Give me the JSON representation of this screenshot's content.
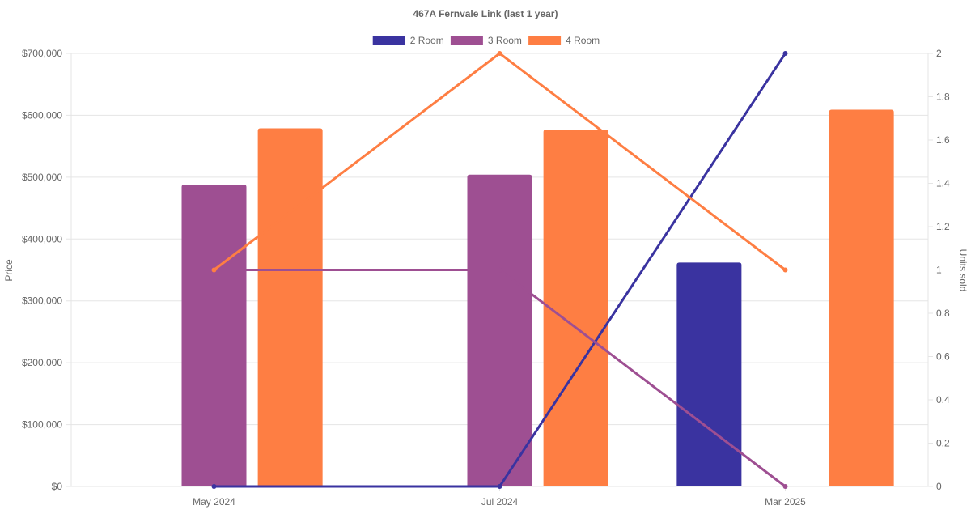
{
  "chart_data": {
    "type": "bar+line",
    "title": "467A Fernvale Link (last 1 year)",
    "categories": [
      "May 2024",
      "Jul 2024",
      "Mar 2025"
    ],
    "y_left_label": "Price",
    "y_right_label": "Units sold",
    "y_left_range": [
      0,
      700000
    ],
    "y_left_ticks": [
      "$0",
      "$100,000",
      "$200,000",
      "$300,000",
      "$400,000",
      "$500,000",
      "$600,000",
      "$700,000"
    ],
    "y_right_range": [
      0,
      2
    ],
    "y_right_ticks": [
      "0",
      "0.2",
      "0.4",
      "0.6",
      "0.8",
      "1",
      "1.2",
      "1.4",
      "1.6",
      "1.8",
      "2"
    ],
    "grid": true,
    "legend_position": "top",
    "series": [
      {
        "name": "2 Room",
        "color": "#3a33a0",
        "price": [
          null,
          null,
          362000
        ],
        "units_sold": [
          0,
          0,
          2
        ]
      },
      {
        "name": "3 Room",
        "color": "#9e4f92",
        "price": [
          488000,
          504000,
          null
        ],
        "units_sold": [
          1,
          1,
          0
        ]
      },
      {
        "name": "4 Room",
        "color": "#fe7e43",
        "price": [
          579000,
          577000,
          609000
        ],
        "units_sold": [
          1,
          2,
          1
        ]
      }
    ]
  }
}
